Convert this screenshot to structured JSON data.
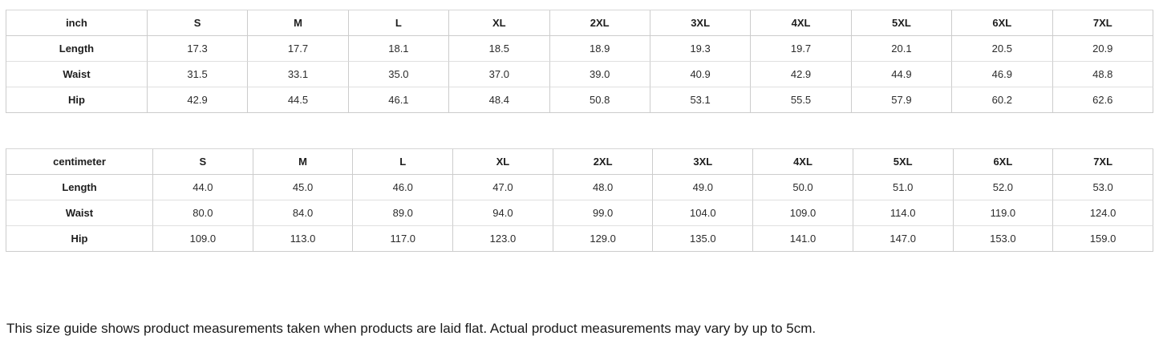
{
  "tables": [
    {
      "unit_label": "inch",
      "sizes": [
        "S",
        "M",
        "L",
        "XL",
        "2XL",
        "3XL",
        "4XL",
        "5XL",
        "6XL",
        "7XL"
      ],
      "rows": [
        {
          "label": "Length",
          "values": [
            "17.3",
            "17.7",
            "18.1",
            "18.5",
            "18.9",
            "19.3",
            "19.7",
            "20.1",
            "20.5",
            "20.9"
          ]
        },
        {
          "label": "Waist",
          "values": [
            "31.5",
            "33.1",
            "35.0",
            "37.0",
            "39.0",
            "40.9",
            "42.9",
            "44.9",
            "46.9",
            "48.8"
          ]
        },
        {
          "label": "Hip",
          "values": [
            "42.9",
            "44.5",
            "46.1",
            "48.4",
            "50.8",
            "53.1",
            "55.5",
            "57.9",
            "60.2",
            "62.6"
          ]
        }
      ]
    },
    {
      "unit_label": "centimeter",
      "sizes": [
        "S",
        "M",
        "L",
        "XL",
        "2XL",
        "3XL",
        "4XL",
        "5XL",
        "6XL",
        "7XL"
      ],
      "rows": [
        {
          "label": "Length",
          "values": [
            "44.0",
            "45.0",
            "46.0",
            "47.0",
            "48.0",
            "49.0",
            "50.0",
            "51.0",
            "52.0",
            "53.0"
          ]
        },
        {
          "label": "Waist",
          "values": [
            "80.0",
            "84.0",
            "89.0",
            "94.0",
            "99.0",
            "104.0",
            "109.0",
            "114.0",
            "119.0",
            "124.0"
          ]
        },
        {
          "label": "Hip",
          "values": [
            "109.0",
            "113.0",
            "117.0",
            "123.0",
            "129.0",
            "135.0",
            "141.0",
            "147.0",
            "153.0",
            "159.0"
          ]
        }
      ]
    }
  ],
  "footer_note": "This size guide shows product measurements taken when products are laid flat. Actual product measurements may vary by up to 5cm.",
  "colors": {
    "border_vertical": "#cccccc",
    "border_horizontal": "#e0e0e0",
    "text": "#222222",
    "background": "#ffffff"
  }
}
